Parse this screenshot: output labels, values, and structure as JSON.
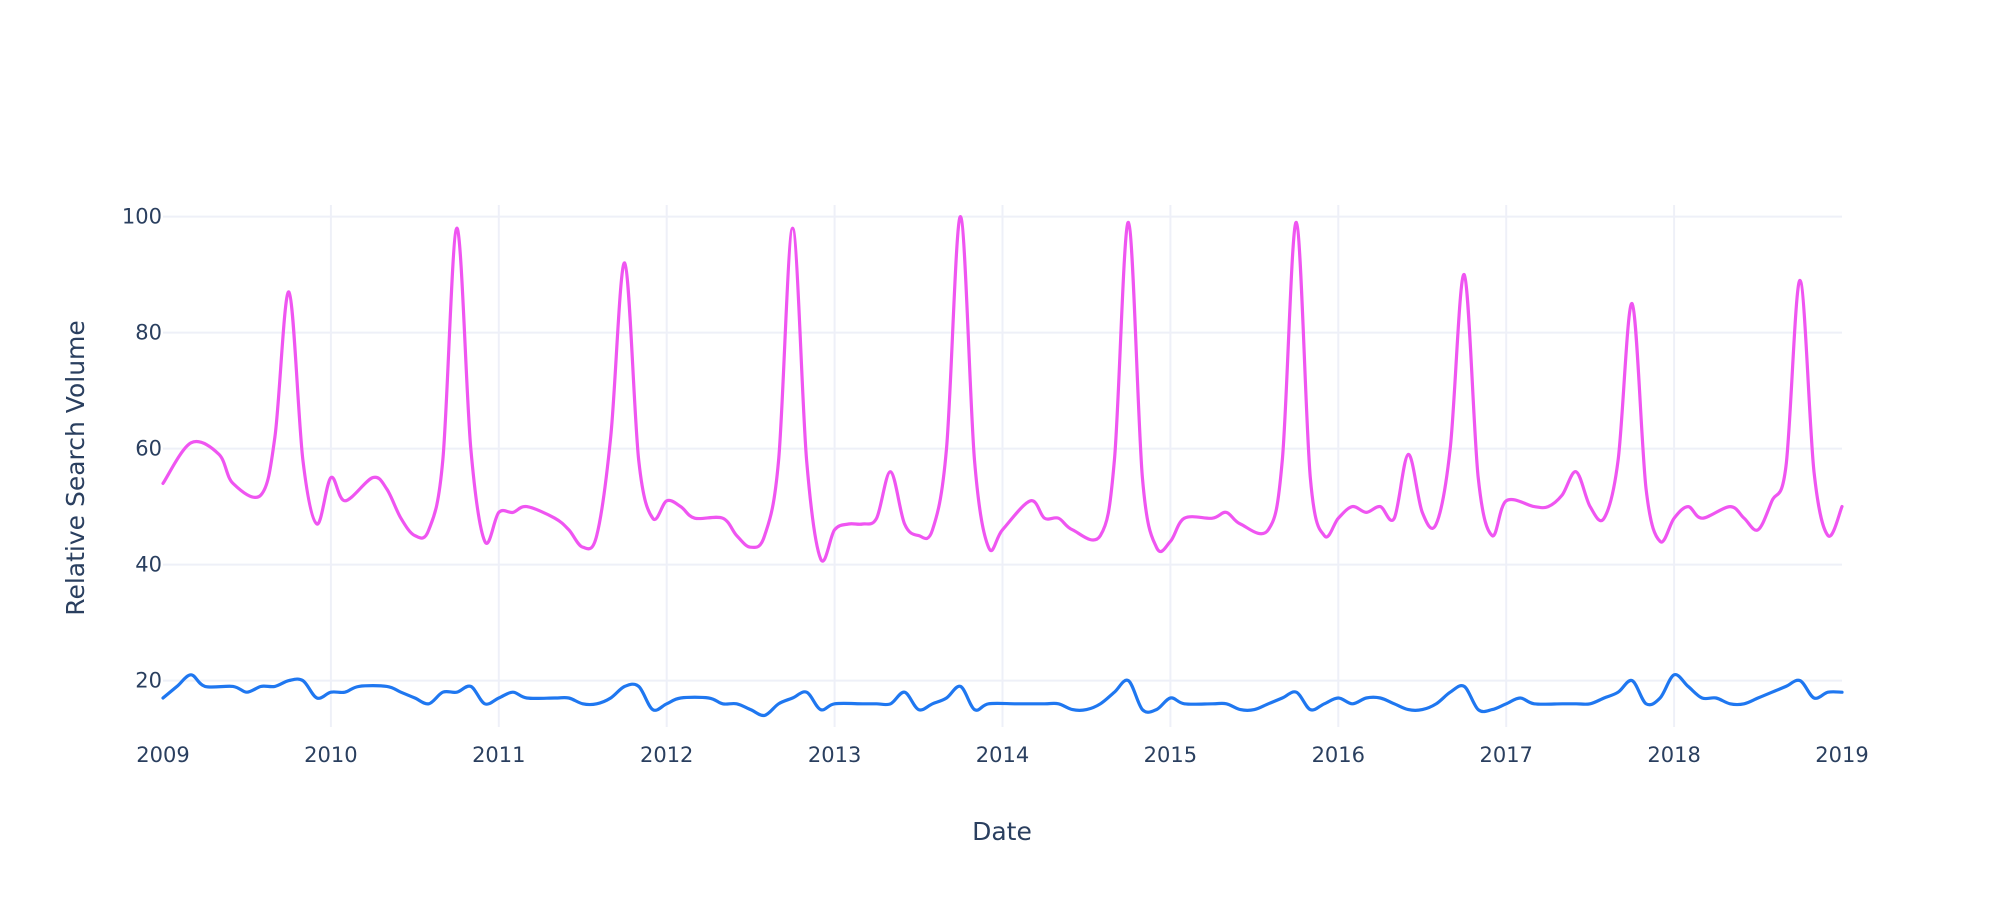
{
  "chart_data": {
    "type": "line",
    "xlabel": "Date",
    "ylabel": "Relative Search Volume",
    "xlim": [
      "2009-01",
      "2019-01"
    ],
    "ylim": [
      12,
      102
    ],
    "x_ticks": [
      "2009",
      "2010",
      "2011",
      "2012",
      "2013",
      "2014",
      "2015",
      "2016",
      "2017",
      "2018",
      "2019"
    ],
    "y_ticks": [
      20,
      40,
      60,
      80,
      100
    ],
    "grid": true,
    "legend": "none",
    "series": [
      {
        "color": "#ef55f1",
        "points": [
          [
            "2009-01",
            54
          ],
          [
            "2009-03",
            61
          ],
          [
            "2009-05",
            59
          ],
          [
            "2009-06",
            54
          ],
          [
            "2009-08",
            52
          ],
          [
            "2009-09",
            62
          ],
          [
            "2009-10",
            87
          ],
          [
            "2009-11",
            58
          ],
          [
            "2009-12",
            47
          ],
          [
            "2010-01",
            55
          ],
          [
            "2010-02",
            51
          ],
          [
            "2010-04",
            55
          ],
          [
            "2010-05",
            53
          ],
          [
            "2010-06",
            48
          ],
          [
            "2010-07",
            45
          ],
          [
            "2010-08",
            46
          ],
          [
            "2010-09",
            58
          ],
          [
            "2010-10",
            98
          ],
          [
            "2010-11",
            60
          ],
          [
            "2010-12",
            44
          ],
          [
            "2011-01",
            49
          ],
          [
            "2011-02",
            49
          ],
          [
            "2011-03",
            50
          ],
          [
            "2011-05",
            48
          ],
          [
            "2011-06",
            46
          ],
          [
            "2011-07",
            43
          ],
          [
            "2011-08",
            45
          ],
          [
            "2011-09",
            62
          ],
          [
            "2011-10",
            92
          ],
          [
            "2011-11",
            58
          ],
          [
            "2011-12",
            48
          ],
          [
            "2012-01",
            51
          ],
          [
            "2012-02",
            50
          ],
          [
            "2012-03",
            48
          ],
          [
            "2012-05",
            48
          ],
          [
            "2012-06",
            45
          ],
          [
            "2012-07",
            43
          ],
          [
            "2012-08",
            45
          ],
          [
            "2012-09",
            58
          ],
          [
            "2012-10",
            98
          ],
          [
            "2012-11",
            58
          ],
          [
            "2012-12",
            41
          ],
          [
            "2013-01",
            46
          ],
          [
            "2013-02",
            47
          ],
          [
            "2013-03",
            47
          ],
          [
            "2013-04",
            48
          ],
          [
            "2013-05",
            56
          ],
          [
            "2013-06",
            47
          ],
          [
            "2013-07",
            45
          ],
          [
            "2013-08",
            46
          ],
          [
            "2013-09",
            60
          ],
          [
            "2013-10",
            100
          ],
          [
            "2013-11",
            58
          ],
          [
            "2013-12",
            43
          ],
          [
            "2014-01",
            46
          ],
          [
            "2014-03",
            51
          ],
          [
            "2014-04",
            48
          ],
          [
            "2014-05",
            48
          ],
          [
            "2014-06",
            46
          ],
          [
            "2014-08",
            45
          ],
          [
            "2014-09",
            58
          ],
          [
            "2014-10",
            99
          ],
          [
            "2014-11",
            55
          ],
          [
            "2014-12",
            43
          ],
          [
            "2015-01",
            44
          ],
          [
            "2015-02",
            48
          ],
          [
            "2015-04",
            48
          ],
          [
            "2015-05",
            49
          ],
          [
            "2015-06",
            47
          ],
          [
            "2015-08",
            46
          ],
          [
            "2015-09",
            58
          ],
          [
            "2015-10",
            99
          ],
          [
            "2015-11",
            55
          ],
          [
            "2015-12",
            45
          ],
          [
            "2016-01",
            48
          ],
          [
            "2016-02",
            50
          ],
          [
            "2016-03",
            49
          ],
          [
            "2016-04",
            50
          ],
          [
            "2016-05",
            48
          ],
          [
            "2016-06",
            59
          ],
          [
            "2016-07",
            49
          ],
          [
            "2016-08",
            47
          ],
          [
            "2016-09",
            60
          ],
          [
            "2016-10",
            90
          ],
          [
            "2016-11",
            55
          ],
          [
            "2016-12",
            45
          ],
          [
            "2017-01",
            51
          ],
          [
            "2017-03",
            50
          ],
          [
            "2017-04",
            50
          ],
          [
            "2017-05",
            52
          ],
          [
            "2017-06",
            56
          ],
          [
            "2017-07",
            50
          ],
          [
            "2017-08",
            48
          ],
          [
            "2017-09",
            58
          ],
          [
            "2017-10",
            85
          ],
          [
            "2017-11",
            53
          ],
          [
            "2017-12",
            44
          ],
          [
            "2018-01",
            48
          ],
          [
            "2018-02",
            50
          ],
          [
            "2018-03",
            48
          ],
          [
            "2018-05",
            50
          ],
          [
            "2018-06",
            48
          ],
          [
            "2018-07",
            46
          ],
          [
            "2018-08",
            51
          ],
          [
            "2018-09",
            57
          ],
          [
            "2018-10",
            89
          ],
          [
            "2018-11",
            56
          ],
          [
            "2018-12",
            45
          ],
          [
            "2019-01",
            50
          ]
        ]
      },
      {
        "color": "#1f77f0",
        "points": [
          [
            "2009-01",
            17
          ],
          [
            "2009-02",
            19
          ],
          [
            "2009-03",
            21
          ],
          [
            "2009-04",
            19
          ],
          [
            "2009-06",
            19
          ],
          [
            "2009-07",
            18
          ],
          [
            "2009-08",
            19
          ],
          [
            "2009-09",
            19
          ],
          [
            "2009-10",
            20
          ],
          [
            "2009-11",
            20
          ],
          [
            "2009-12",
            17
          ],
          [
            "2010-01",
            18
          ],
          [
            "2010-02",
            18
          ],
          [
            "2010-03",
            19
          ],
          [
            "2010-05",
            19
          ],
          [
            "2010-06",
            18
          ],
          [
            "2010-07",
            17
          ],
          [
            "2010-08",
            16
          ],
          [
            "2010-09",
            18
          ],
          [
            "2010-10",
            18
          ],
          [
            "2010-11",
            19
          ],
          [
            "2010-12",
            16
          ],
          [
            "2011-01",
            17
          ],
          [
            "2011-02",
            18
          ],
          [
            "2011-03",
            17
          ],
          [
            "2011-05",
            17
          ],
          [
            "2011-06",
            17
          ],
          [
            "2011-07",
            16
          ],
          [
            "2011-08",
            16
          ],
          [
            "2011-09",
            17
          ],
          [
            "2011-10",
            19
          ],
          [
            "2011-11",
            19
          ],
          [
            "2011-12",
            15
          ],
          [
            "2012-01",
            16
          ],
          [
            "2012-02",
            17
          ],
          [
            "2012-04",
            17
          ],
          [
            "2012-05",
            16
          ],
          [
            "2012-06",
            16
          ],
          [
            "2012-07",
            15
          ],
          [
            "2012-08",
            14
          ],
          [
            "2012-09",
            16
          ],
          [
            "2012-10",
            17
          ],
          [
            "2012-11",
            18
          ],
          [
            "2012-12",
            15
          ],
          [
            "2013-01",
            16
          ],
          [
            "2013-03",
            16
          ],
          [
            "2013-04",
            16
          ],
          [
            "2013-05",
            16
          ],
          [
            "2013-06",
            18
          ],
          [
            "2013-07",
            15
          ],
          [
            "2013-08",
            16
          ],
          [
            "2013-09",
            17
          ],
          [
            "2013-10",
            19
          ],
          [
            "2013-11",
            15
          ],
          [
            "2013-12",
            16
          ],
          [
            "2014-02",
            16
          ],
          [
            "2014-04",
            16
          ],
          [
            "2014-05",
            16
          ],
          [
            "2014-06",
            15
          ],
          [
            "2014-07",
            15
          ],
          [
            "2014-08",
            16
          ],
          [
            "2014-09",
            18
          ],
          [
            "2014-10",
            20
          ],
          [
            "2014-11",
            15
          ],
          [
            "2014-12",
            15
          ],
          [
            "2015-01",
            17
          ],
          [
            "2015-02",
            16
          ],
          [
            "2015-04",
            16
          ],
          [
            "2015-05",
            16
          ],
          [
            "2015-06",
            15
          ],
          [
            "2015-07",
            15
          ],
          [
            "2015-08",
            16
          ],
          [
            "2015-09",
            17
          ],
          [
            "2015-10",
            18
          ],
          [
            "2015-11",
            15
          ],
          [
            "2015-12",
            16
          ],
          [
            "2016-01",
            17
          ],
          [
            "2016-02",
            16
          ],
          [
            "2016-03",
            17
          ],
          [
            "2016-04",
            17
          ],
          [
            "2016-05",
            16
          ],
          [
            "2016-06",
            15
          ],
          [
            "2016-07",
            15
          ],
          [
            "2016-08",
            16
          ],
          [
            "2016-09",
            18
          ],
          [
            "2016-10",
            19
          ],
          [
            "2016-11",
            15
          ],
          [
            "2016-12",
            15
          ],
          [
            "2017-01",
            16
          ],
          [
            "2017-02",
            17
          ],
          [
            "2017-03",
            16
          ],
          [
            "2017-05",
            16
          ],
          [
            "2017-06",
            16
          ],
          [
            "2017-07",
            16
          ],
          [
            "2017-08",
            17
          ],
          [
            "2017-09",
            18
          ],
          [
            "2017-10",
            20
          ],
          [
            "2017-11",
            16
          ],
          [
            "2017-12",
            17
          ],
          [
            "2018-01",
            21
          ],
          [
            "2018-02",
            19
          ],
          [
            "2018-03",
            17
          ],
          [
            "2018-04",
            17
          ],
          [
            "2018-05",
            16
          ],
          [
            "2018-06",
            16
          ],
          [
            "2018-07",
            17
          ],
          [
            "2018-08",
            18
          ],
          [
            "2018-09",
            19
          ],
          [
            "2018-10",
            20
          ],
          [
            "2018-11",
            17
          ],
          [
            "2018-12",
            18
          ],
          [
            "2019-01",
            18
          ]
        ]
      }
    ]
  }
}
